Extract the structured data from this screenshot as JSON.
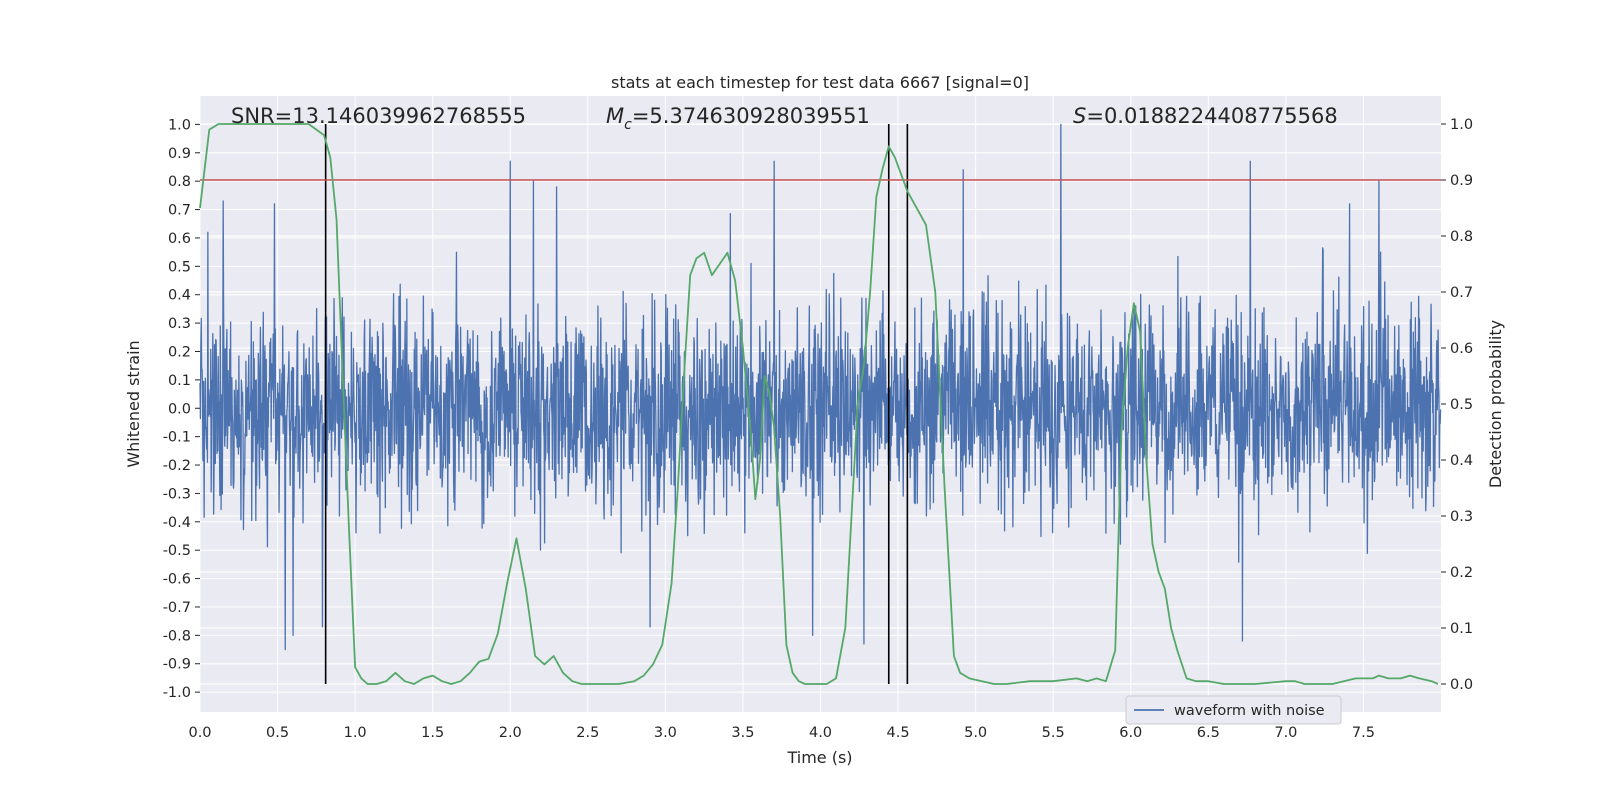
{
  "chart_data": {
    "type": "line",
    "title": "stats at each timestep for test data 6667 [signal=0]",
    "xlabel": "Time (s)",
    "ylabel_left": "Whitened strain",
    "ylabel_right": "Detection probability",
    "xlim": [
      0,
      8
    ],
    "ylim_left": [
      -1.07,
      1.1
    ],
    "ylim_right": [
      -0.05,
      1.05
    ],
    "x_ticks": [
      "0.0",
      "0.5",
      "1.0",
      "1.5",
      "2.0",
      "2.5",
      "3.0",
      "3.5",
      "4.0",
      "4.5",
      "5.0",
      "5.5",
      "6.0",
      "6.5",
      "7.0",
      "7.5"
    ],
    "y_ticks_left": [
      "-1.0",
      "-0.9",
      "-0.8",
      "-0.7",
      "-0.6",
      "-0.5",
      "-0.4",
      "-0.3",
      "-0.2",
      "-0.1",
      "0.0",
      "0.1",
      "0.2",
      "0.3",
      "0.4",
      "0.5",
      "0.6",
      "0.7",
      "0.8",
      "0.9",
      "1.0"
    ],
    "y_ticks_right": [
      "0.0",
      "0.1",
      "0.2",
      "0.3",
      "0.4",
      "0.5",
      "0.6",
      "0.7",
      "0.8",
      "0.9",
      "1.0"
    ],
    "annotations": {
      "snr": "SNR=13.146039962768555",
      "mc_symbol": "M",
      "mc_sub": "c",
      "mc_value": "=5.374630928039551",
      "s_symbol": "S",
      "s_value": "=0.0188224408775568"
    },
    "legend": [
      "waveform with noise"
    ],
    "threshold": {
      "value": 0.9,
      "axis": "right",
      "color": "#c44e52"
    },
    "vertical_lines": [
      0.81,
      4.44,
      4.56
    ],
    "waveform": {
      "name": "waveform with noise",
      "color": "#4c72b0",
      "description": "dense whitened strain noise sampled across 0 to 8 s",
      "spikes": [
        {
          "t": 0.05,
          "v": 0.62
        },
        {
          "t": 0.15,
          "v": 0.73
        },
        {
          "t": 0.48,
          "v": 0.72
        },
        {
          "t": 0.55,
          "v": -0.85
        },
        {
          "t": 0.6,
          "v": -0.8
        },
        {
          "t": 0.79,
          "v": -0.77
        },
        {
          "t": 2.0,
          "v": 0.87
        },
        {
          "t": 2.15,
          "v": 0.8
        },
        {
          "t": 2.3,
          "v": 0.78
        },
        {
          "t": 2.9,
          "v": -0.77
        },
        {
          "t": 3.7,
          "v": 0.87
        },
        {
          "t": 3.95,
          "v": -0.8
        },
        {
          "t": 4.28,
          "v": -0.83
        },
        {
          "t": 4.92,
          "v": 0.84
        },
        {
          "t": 5.55,
          "v": 1.0
        },
        {
          "t": 6.72,
          "v": -0.82
        },
        {
          "t": 6.77,
          "v": 0.87
        },
        {
          "t": 7.6,
          "v": 0.8
        }
      ]
    },
    "detection_probability": {
      "color": "#55a868",
      "x": [
        0.0,
        0.06,
        0.12,
        0.2,
        0.3,
        0.4,
        0.5,
        0.6,
        0.7,
        0.75,
        0.8,
        0.84,
        0.88,
        0.92,
        0.96,
        1.0,
        1.04,
        1.08,
        1.14,
        1.2,
        1.26,
        1.32,
        1.38,
        1.44,
        1.5,
        1.56,
        1.62,
        1.68,
        1.74,
        1.8,
        1.86,
        1.92,
        1.98,
        2.04,
        2.1,
        2.16,
        2.22,
        2.28,
        2.34,
        2.4,
        2.46,
        2.52,
        2.6,
        2.7,
        2.8,
        2.86,
        2.92,
        2.98,
        3.04,
        3.08,
        3.12,
        3.16,
        3.2,
        3.25,
        3.3,
        3.35,
        3.4,
        3.45,
        3.5,
        3.55,
        3.58,
        3.61,
        3.64,
        3.67,
        3.7,
        3.74,
        3.78,
        3.82,
        3.86,
        3.9,
        3.96,
        4.04,
        4.1,
        4.16,
        4.2,
        4.24,
        4.28,
        4.32,
        4.36,
        4.4,
        4.44,
        4.48,
        4.52,
        4.56,
        4.6,
        4.68,
        4.74,
        4.8,
        4.86,
        4.9,
        4.96,
        5.04,
        5.12,
        5.2,
        5.35,
        5.5,
        5.65,
        5.72,
        5.78,
        5.84,
        5.9,
        5.94,
        5.98,
        6.02,
        6.06,
        6.1,
        6.14,
        6.18,
        6.22,
        6.26,
        6.3,
        6.36,
        6.42,
        6.5,
        6.6,
        6.8,
        7.0,
        7.06,
        7.12,
        7.2,
        7.3,
        7.45,
        7.56,
        7.6,
        7.66,
        7.74,
        7.8,
        7.86,
        7.94,
        7.98
      ],
      "y": [
        0.85,
        0.99,
        1.0,
        1.0,
        1.0,
        1.0,
        1.0,
        1.0,
        1.0,
        0.99,
        0.98,
        0.94,
        0.83,
        0.55,
        0.28,
        0.03,
        0.01,
        0.0,
        0.0,
        0.005,
        0.02,
        0.005,
        0.0,
        0.01,
        0.015,
        0.005,
        0.0,
        0.005,
        0.02,
        0.04,
        0.045,
        0.09,
        0.18,
        0.26,
        0.17,
        0.05,
        0.035,
        0.05,
        0.02,
        0.005,
        0.0,
        0.0,
        0.0,
        0.0,
        0.005,
        0.015,
        0.035,
        0.07,
        0.18,
        0.35,
        0.55,
        0.73,
        0.76,
        0.77,
        0.73,
        0.75,
        0.77,
        0.72,
        0.6,
        0.45,
        0.33,
        0.4,
        0.55,
        0.52,
        0.46,
        0.3,
        0.07,
        0.02,
        0.005,
        0.0,
        0.0,
        0.0,
        0.01,
        0.1,
        0.3,
        0.5,
        0.57,
        0.7,
        0.87,
        0.92,
        0.96,
        0.94,
        0.91,
        0.88,
        0.86,
        0.82,
        0.7,
        0.35,
        0.05,
        0.02,
        0.01,
        0.005,
        0.0,
        0.0,
        0.005,
        0.005,
        0.01,
        0.005,
        0.01,
        0.005,
        0.06,
        0.45,
        0.6,
        0.68,
        0.63,
        0.4,
        0.25,
        0.2,
        0.17,
        0.1,
        0.06,
        0.01,
        0.005,
        0.005,
        0.0,
        0.0,
        0.005,
        0.005,
        0.0,
        0.0,
        0.0,
        0.01,
        0.01,
        0.015,
        0.01,
        0.01,
        0.015,
        0.01,
        0.005,
        0.0
      ]
    }
  }
}
